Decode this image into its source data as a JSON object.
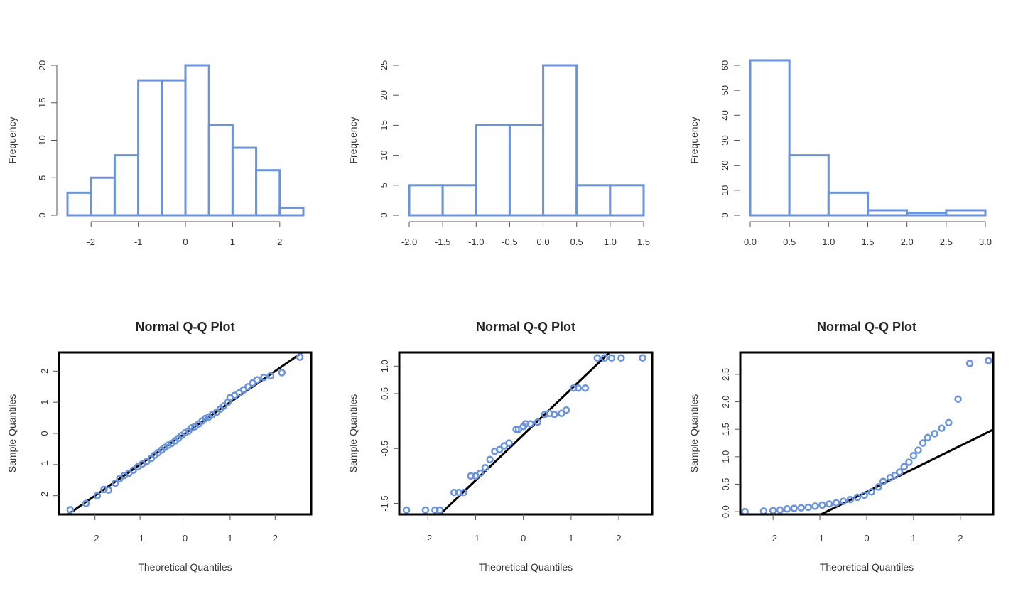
{
  "colors": {
    "accent": "#6a93dc",
    "frame": "#000000",
    "refline": "#000000",
    "text": "#333333"
  },
  "chart_data": [
    {
      "type": "histogram",
      "title": "",
      "xlabel": "",
      "ylabel": "Frequency",
      "xlim": [
        -2.5,
        2.5
      ],
      "ylim": [
        0,
        20
      ],
      "x_ticks": [
        "-2",
        "-1",
        "0",
        "1",
        "2"
      ],
      "y_ticks": [
        "0",
        "5",
        "10",
        "15",
        "20"
      ],
      "bins": [
        {
          "x0": -2.5,
          "x1": -2.0,
          "count": 3
        },
        {
          "x0": -2.0,
          "x1": -1.5,
          "count": 5
        },
        {
          "x0": -1.5,
          "x1": -1.0,
          "count": 8
        },
        {
          "x0": -1.0,
          "x1": -0.5,
          "count": 18
        },
        {
          "x0": -0.5,
          "x1": 0.0,
          "count": 18
        },
        {
          "x0": 0.0,
          "x1": 0.5,
          "count": 20
        },
        {
          "x0": 0.5,
          "x1": 1.0,
          "count": 12
        },
        {
          "x0": 1.0,
          "x1": 1.5,
          "count": 9
        },
        {
          "x0": 1.5,
          "x1": 2.0,
          "count": 6
        },
        {
          "x0": 2.0,
          "x1": 2.5,
          "count": 1
        }
      ]
    },
    {
      "type": "histogram",
      "title": "",
      "xlabel": "",
      "ylabel": "Frequency",
      "xlim": [
        -2.0,
        1.5
      ],
      "ylim": [
        0,
        25
      ],
      "x_ticks": [
        "-2.0",
        "-1.5",
        "-1.0",
        "-0.5",
        "0.0",
        "0.5",
        "1.0",
        "1.5"
      ],
      "y_ticks": [
        "0",
        "5",
        "10",
        "15",
        "20",
        "25"
      ],
      "bins": [
        {
          "x0": -2.0,
          "x1": -1.5,
          "count": 5
        },
        {
          "x0": -1.5,
          "x1": -1.0,
          "count": 5
        },
        {
          "x0": -1.0,
          "x1": -0.5,
          "count": 15
        },
        {
          "x0": -0.5,
          "x1": 0.0,
          "count": 15
        },
        {
          "x0": 0.0,
          "x1": 0.5,
          "count": 25
        },
        {
          "x0": 0.5,
          "x1": 1.0,
          "count": 5
        },
        {
          "x0": 1.0,
          "x1": 1.5,
          "count": 5
        }
      ]
    },
    {
      "type": "histogram",
      "title": "",
      "xlabel": "",
      "ylabel": "Frequency",
      "xlim": [
        0.0,
        3.0
      ],
      "ylim": [
        0,
        60
      ],
      "x_ticks": [
        "0.0",
        "0.5",
        "1.0",
        "1.5",
        "2.0",
        "2.5",
        "3.0"
      ],
      "y_ticks": [
        "0",
        "10",
        "20",
        "30",
        "40",
        "50",
        "60"
      ],
      "bins": [
        {
          "x0": 0.0,
          "x1": 0.5,
          "count": 62
        },
        {
          "x0": 0.5,
          "x1": 1.0,
          "count": 24
        },
        {
          "x0": 1.0,
          "x1": 1.5,
          "count": 9
        },
        {
          "x0": 1.5,
          "x1": 2.0,
          "count": 2
        },
        {
          "x0": 2.0,
          "x1": 2.5,
          "count": 1
        },
        {
          "x0": 2.5,
          "x1": 3.0,
          "count": 2
        }
      ]
    },
    {
      "type": "scatter",
      "title": "Normal Q-Q Plot",
      "xlabel": "Theoretical Quantiles",
      "ylabel": "Sample Quantiles",
      "xlim": [
        -2.8,
        2.8
      ],
      "ylim": [
        -2.6,
        2.6
      ],
      "x_ticks": [
        "-2",
        "-1",
        "0",
        "1",
        "2"
      ],
      "y_ticks": [
        "-2",
        "-1",
        "0",
        "1",
        "2"
      ],
      "line": {
        "slope": 1.0,
        "intercept": 0.0
      },
      "points": [
        [
          -2.55,
          -2.45
        ],
        [
          -2.2,
          -2.25
        ],
        [
          -1.95,
          -2.0
        ],
        [
          -1.8,
          -1.8
        ],
        [
          -1.7,
          -1.82
        ],
        [
          -1.55,
          -1.6
        ],
        [
          -1.45,
          -1.45
        ],
        [
          -1.35,
          -1.35
        ],
        [
          -1.25,
          -1.28
        ],
        [
          -1.15,
          -1.18
        ],
        [
          -1.05,
          -1.07
        ],
        [
          -0.95,
          -0.98
        ],
        [
          -0.85,
          -0.9
        ],
        [
          -0.75,
          -0.8
        ],
        [
          -0.68,
          -0.7
        ],
        [
          -0.6,
          -0.62
        ],
        [
          -0.52,
          -0.53
        ],
        [
          -0.45,
          -0.45
        ],
        [
          -0.38,
          -0.38
        ],
        [
          -0.3,
          -0.32
        ],
        [
          -0.22,
          -0.24
        ],
        [
          -0.15,
          -0.16
        ],
        [
          -0.08,
          -0.07
        ],
        [
          0.0,
          0.02
        ],
        [
          0.08,
          0.08
        ],
        [
          0.15,
          0.18
        ],
        [
          0.22,
          0.22
        ],
        [
          0.3,
          0.3
        ],
        [
          0.38,
          0.4
        ],
        [
          0.45,
          0.48
        ],
        [
          0.52,
          0.52
        ],
        [
          0.6,
          0.6
        ],
        [
          0.7,
          0.68
        ],
        [
          0.78,
          0.78
        ],
        [
          0.86,
          0.88
        ],
        [
          0.95,
          1.0
        ],
        [
          1.0,
          1.15
        ],
        [
          1.1,
          1.22
        ],
        [
          1.2,
          1.3
        ],
        [
          1.3,
          1.4
        ],
        [
          1.4,
          1.5
        ],
        [
          1.5,
          1.62
        ],
        [
          1.6,
          1.72
        ],
        [
          1.75,
          1.8
        ],
        [
          1.9,
          1.85
        ],
        [
          2.15,
          1.95
        ],
        [
          2.55,
          2.45
        ]
      ]
    },
    {
      "type": "scatter",
      "title": "Normal Q-Q Plot",
      "xlabel": "Theoretical Quantiles",
      "ylabel": "Sample Quantiles",
      "xlim": [
        -2.6,
        2.7
      ],
      "ylim": [
        -1.7,
        1.25
      ],
      "x_ticks": [
        "-2",
        "-1",
        "0",
        "1",
        "2"
      ],
      "y_ticks": [
        "-1.5",
        "-0.5",
        "0.5",
        "1.0"
      ],
      "line": {
        "slope": 0.83,
        "intercept": -0.25
      },
      "points": [
        [
          -2.45,
          -1.62
        ],
        [
          -2.05,
          -1.62
        ],
        [
          -1.85,
          -1.62
        ],
        [
          -1.75,
          -1.62
        ],
        [
          -1.45,
          -1.3
        ],
        [
          -1.35,
          -1.3
        ],
        [
          -1.25,
          -1.3
        ],
        [
          -1.1,
          -1.0
        ],
        [
          -1.0,
          -1.0
        ],
        [
          -0.9,
          -0.95
        ],
        [
          -0.8,
          -0.85
        ],
        [
          -0.7,
          -0.7
        ],
        [
          -0.6,
          -0.55
        ],
        [
          -0.5,
          -0.52
        ],
        [
          -0.4,
          -0.45
        ],
        [
          -0.3,
          -0.4
        ],
        [
          -0.15,
          -0.15
        ],
        [
          -0.1,
          -0.15
        ],
        [
          0.0,
          -0.1
        ],
        [
          0.05,
          -0.05
        ],
        [
          0.15,
          -0.05
        ],
        [
          0.3,
          -0.02
        ],
        [
          0.45,
          0.12
        ],
        [
          0.55,
          0.14
        ],
        [
          0.65,
          0.12
        ],
        [
          0.8,
          0.14
        ],
        [
          0.9,
          0.2
        ],
        [
          1.05,
          0.6
        ],
        [
          1.15,
          0.6
        ],
        [
          1.3,
          0.6
        ],
        [
          1.55,
          1.15
        ],
        [
          1.7,
          1.15
        ],
        [
          1.85,
          1.15
        ],
        [
          2.05,
          1.15
        ],
        [
          2.5,
          1.15
        ]
      ]
    },
    {
      "type": "scatter",
      "title": "Normal Q-Q Plot",
      "xlabel": "Theoretical Quantiles",
      "ylabel": "Sample Quantiles",
      "xlim": [
        -2.7,
        2.7
      ],
      "ylim": [
        -0.05,
        2.9
      ],
      "x_ticks": [
        "-2",
        "-1",
        "0",
        "1",
        "2"
      ],
      "y_ticks": [
        "0.0",
        "0.5",
        "1.0",
        "1.5",
        "2.0",
        "2.5"
      ],
      "line": {
        "slope": 0.42,
        "intercept": 0.36
      },
      "points": [
        [
          -2.6,
          0.0
        ],
        [
          -2.2,
          0.01
        ],
        [
          -2.0,
          0.02
        ],
        [
          -1.85,
          0.03
        ],
        [
          -1.7,
          0.05
        ],
        [
          -1.55,
          0.06
        ],
        [
          -1.4,
          0.07
        ],
        [
          -1.25,
          0.08
        ],
        [
          -1.1,
          0.1
        ],
        [
          -0.95,
          0.12
        ],
        [
          -0.8,
          0.14
        ],
        [
          -0.65,
          0.16
        ],
        [
          -0.5,
          0.19
        ],
        [
          -0.35,
          0.22
        ],
        [
          -0.2,
          0.26
        ],
        [
          -0.05,
          0.3
        ],
        [
          0.1,
          0.36
        ],
        [
          0.25,
          0.45
        ],
        [
          0.35,
          0.55
        ],
        [
          0.5,
          0.62
        ],
        [
          0.6,
          0.66
        ],
        [
          0.7,
          0.72
        ],
        [
          0.8,
          0.82
        ],
        [
          0.9,
          0.9
        ],
        [
          1.0,
          1.02
        ],
        [
          1.1,
          1.12
        ],
        [
          1.2,
          1.25
        ],
        [
          1.3,
          1.35
        ],
        [
          1.45,
          1.42
        ],
        [
          1.6,
          1.52
        ],
        [
          1.75,
          1.62
        ],
        [
          1.95,
          2.05
        ],
        [
          2.2,
          2.7
        ],
        [
          2.6,
          2.75
        ]
      ]
    }
  ]
}
